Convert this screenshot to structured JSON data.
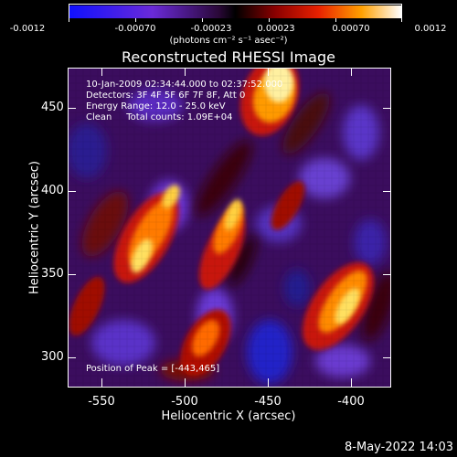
{
  "colorbar": {
    "ticks": [
      "-0.0012",
      "-0.00070",
      "-0.00023",
      "0.00023",
      "0.00070",
      "0.0012"
    ],
    "units": "(photons cm⁻² s⁻¹ asec⁻²)"
  },
  "title": "Reconstructed RHESSI Image",
  "info": {
    "time": "10-Jan-2009 02:34:44.000 to 02:37:52.000",
    "detectors": "Detectors: 3F 4F 5F 6F 7F 8F, Att 0",
    "energy": "Energy Range: 12.0 - 25.0 keV",
    "method": "Clean     Total counts: 1.09E+04",
    "peak": "Position of Peak = [-443,465]"
  },
  "axes": {
    "xlabel": "Heliocentric X (arcsec)",
    "ylabel": "Heliocentric Y (arcsec)",
    "xticks": [
      "-550",
      "-500",
      "-450",
      "-400"
    ],
    "yticks": [
      "450",
      "400",
      "350",
      "300"
    ]
  },
  "timestamp": "8-May-2022 14:03",
  "colors": {
    "background": "#000000",
    "axis": "#ffffff"
  }
}
